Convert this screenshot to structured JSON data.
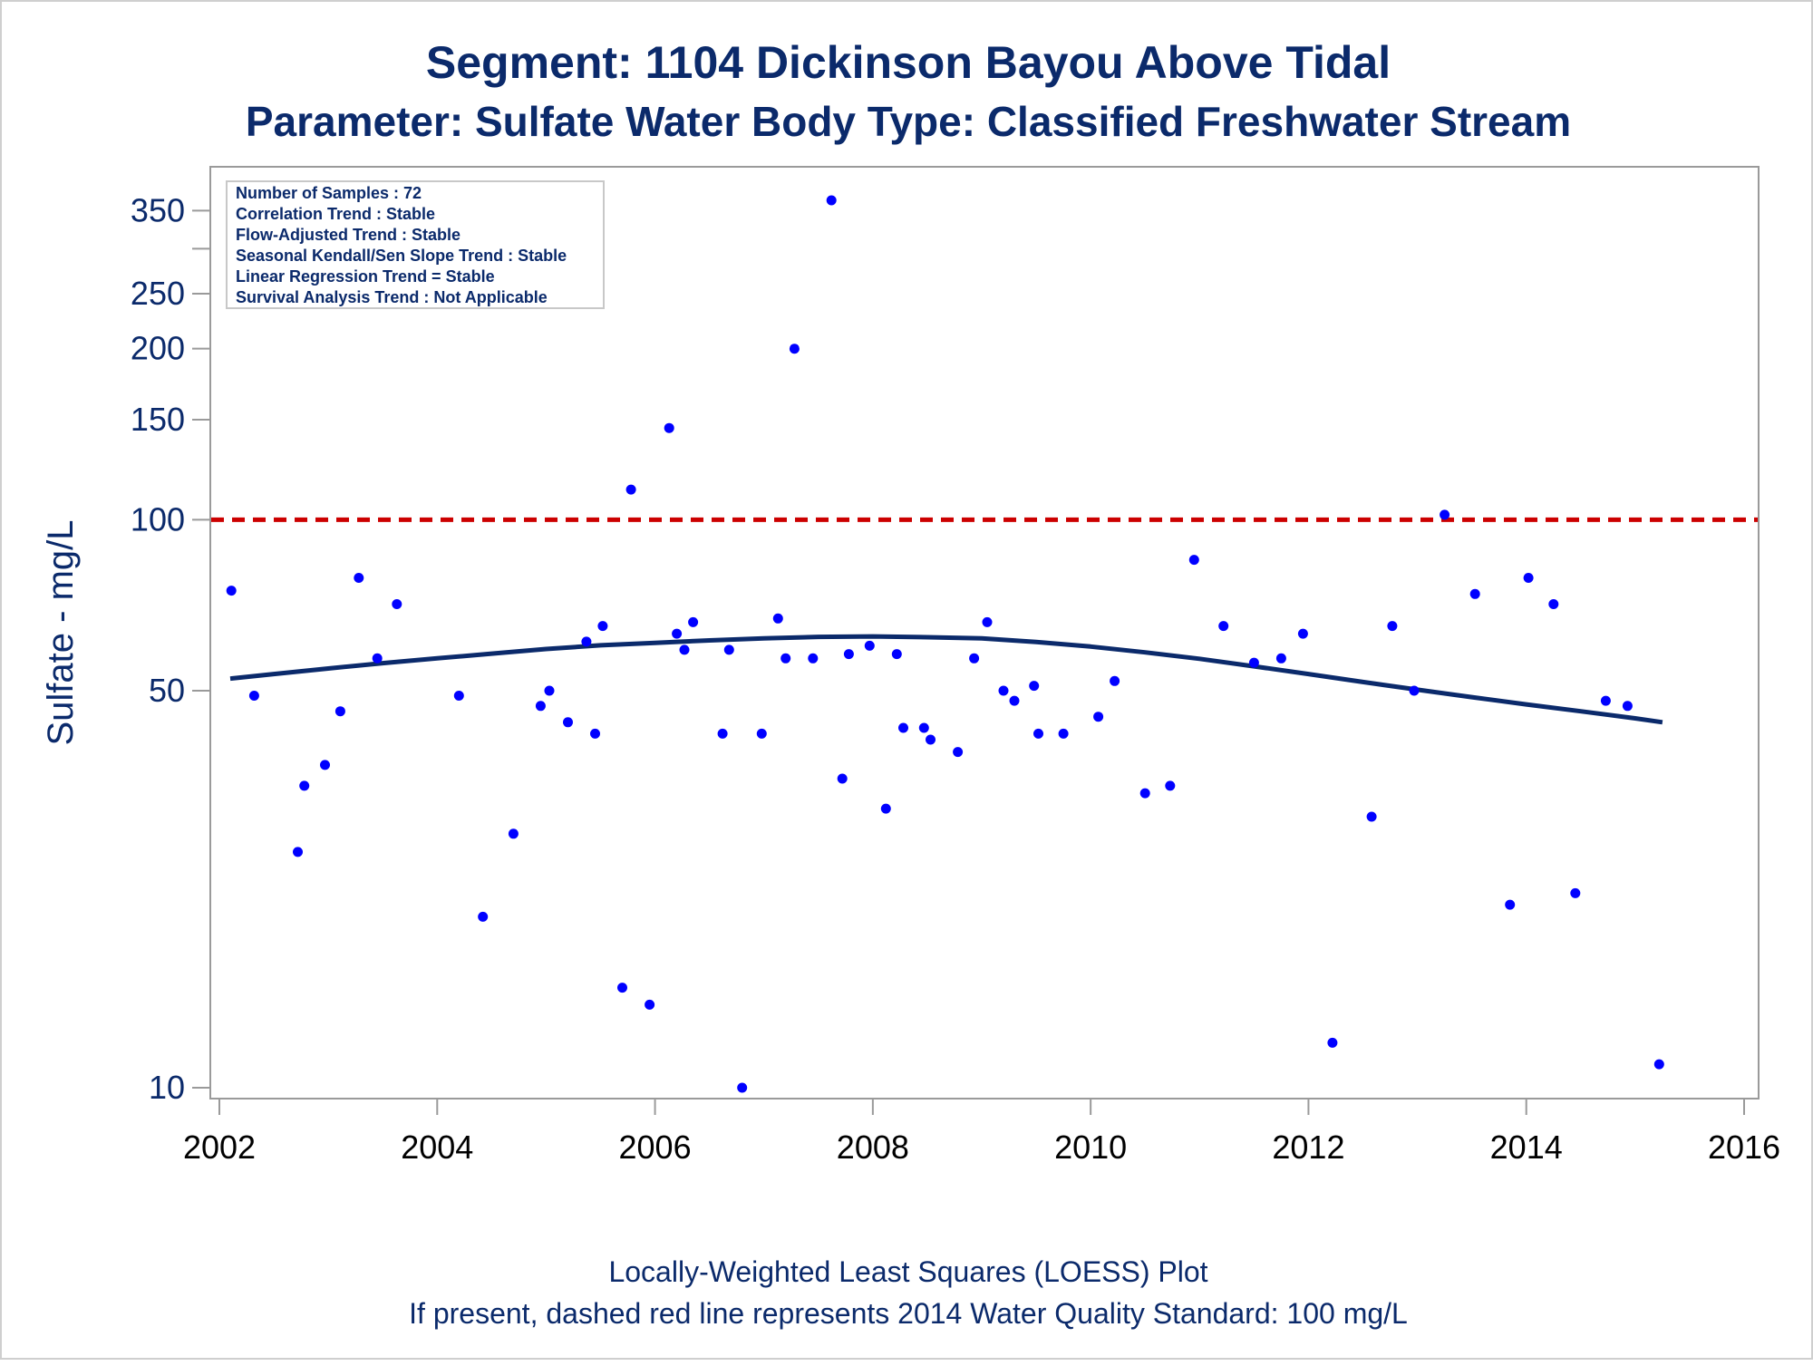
{
  "chart_data": {
    "type": "scatter",
    "title": "Segment: 1104  Dickinson Bayou Above Tidal",
    "subtitle": "Parameter: Sulfate   Water Body Type: Classified Freshwater Stream",
    "xlabel": "",
    "ylabel": "Sulfate - mg/L",
    "footnote_1": "Locally-Weighted Least Squares (LOESS) Plot",
    "footnote_2": "If present, dashed red line represents 2014 Water Quality Standard: 100   mg/L",
    "y_scale": "log",
    "xlim": [
      2002,
      2016
    ],
    "ylim": [
      10,
      380
    ],
    "x_ticks": [
      "2002",
      "2004",
      "2006",
      "2008",
      "2010",
      "2012",
      "2014",
      "2016"
    ],
    "y_ticks": [
      10,
      50,
      100,
      150,
      200,
      250,
      350
    ],
    "y_minor_ticks": [
      300
    ],
    "grid": false,
    "legend_position": "top-left",
    "colors": {
      "points": "#0000ff",
      "loess": "#0b2a6b",
      "standard": "#cc0000",
      "text": "#0b2a6b",
      "axis": "#9a9a9a"
    },
    "info_box": [
      "Number of Samples : 72",
      "Correlation Trend : Stable",
      "Flow-Adjusted Trend : Stable",
      "Seasonal Kendall/Sen Slope Trend : Stable",
      "Linear Regression Trend = Stable",
      "Survival Analysis Trend : Not Applicable"
    ],
    "standard_line": {
      "value": 100,
      "style": "dashed"
    },
    "points": [
      [
        2002.11,
        75
      ],
      [
        2002.32,
        49
      ],
      [
        2002.72,
        26
      ],
      [
        2002.78,
        34
      ],
      [
        2002.97,
        37
      ],
      [
        2003.11,
        46
      ],
      [
        2003.28,
        79
      ],
      [
        2003.45,
        57
      ],
      [
        2003.63,
        71
      ],
      [
        2004.2,
        49
      ],
      [
        2004.42,
        20
      ],
      [
        2004.7,
        28
      ],
      [
        2004.95,
        47
      ],
      [
        2005.03,
        50
      ],
      [
        2005.2,
        44
      ],
      [
        2005.37,
        61
      ],
      [
        2005.45,
        42
      ],
      [
        2005.52,
        65
      ],
      [
        2005.7,
        15
      ],
      [
        2005.78,
        113
      ],
      [
        2005.95,
        14
      ],
      [
        2006.13,
        145
      ],
      [
        2006.2,
        63
      ],
      [
        2006.27,
        59
      ],
      [
        2006.35,
        66
      ],
      [
        2006.62,
        42
      ],
      [
        2006.68,
        59
      ],
      [
        2006.8,
        10
      ],
      [
        2006.98,
        42
      ],
      [
        2007.13,
        67
      ],
      [
        2007.2,
        57
      ],
      [
        2007.28,
        200
      ],
      [
        2007.45,
        57
      ],
      [
        2007.62,
        365
      ],
      [
        2007.72,
        35
      ],
      [
        2007.78,
        58
      ],
      [
        2007.97,
        60
      ],
      [
        2008.12,
        31
      ],
      [
        2008.22,
        58
      ],
      [
        2008.28,
        43
      ],
      [
        2008.47,
        43
      ],
      [
        2008.53,
        41
      ],
      [
        2008.78,
        39
      ],
      [
        2008.93,
        57
      ],
      [
        2009.05,
        66
      ],
      [
        2009.2,
        50
      ],
      [
        2009.3,
        48
      ],
      [
        2009.48,
        51
      ],
      [
        2009.52,
        42
      ],
      [
        2009.75,
        42
      ],
      [
        2010.07,
        45
      ],
      [
        2010.22,
        52
      ],
      [
        2010.5,
        33
      ],
      [
        2010.73,
        34
      ],
      [
        2010.95,
        85
      ],
      [
        2011.22,
        65
      ],
      [
        2011.5,
        56
      ],
      [
        2011.75,
        57
      ],
      [
        2011.95,
        63
      ],
      [
        2012.22,
        12
      ],
      [
        2012.58,
        30
      ],
      [
        2012.77,
        65
      ],
      [
        2012.97,
        50
      ],
      [
        2013.25,
        102
      ],
      [
        2013.53,
        74
      ],
      [
        2013.85,
        21
      ],
      [
        2014.02,
        79
      ],
      [
        2014.25,
        71
      ],
      [
        2014.45,
        22
      ],
      [
        2014.73,
        48
      ],
      [
        2014.93,
        47
      ],
      [
        2015.22,
        11
      ]
    ],
    "loess": [
      [
        2002.1,
        52.5
      ],
      [
        2002.5,
        53.5
      ],
      [
        2003.0,
        54.7
      ],
      [
        2003.5,
        55.9
      ],
      [
        2004.0,
        57.0
      ],
      [
        2004.5,
        58.1
      ],
      [
        2005.0,
        59.2
      ],
      [
        2005.5,
        60.1
      ],
      [
        2006.0,
        60.7
      ],
      [
        2006.5,
        61.3
      ],
      [
        2007.0,
        61.8
      ],
      [
        2007.5,
        62.2
      ],
      [
        2008.0,
        62.3
      ],
      [
        2008.5,
        62.1
      ],
      [
        2009.0,
        61.8
      ],
      [
        2009.5,
        60.9
      ],
      [
        2010.0,
        59.8
      ],
      [
        2010.5,
        58.4
      ],
      [
        2011.0,
        56.9
      ],
      [
        2011.5,
        55.2
      ],
      [
        2012.0,
        53.5
      ],
      [
        2012.5,
        51.8
      ],
      [
        2013.0,
        50.2
      ],
      [
        2013.5,
        48.7
      ],
      [
        2014.0,
        47.3
      ],
      [
        2014.5,
        46.0
      ],
      [
        2015.0,
        44.7
      ],
      [
        2015.25,
        44.0
      ]
    ]
  }
}
